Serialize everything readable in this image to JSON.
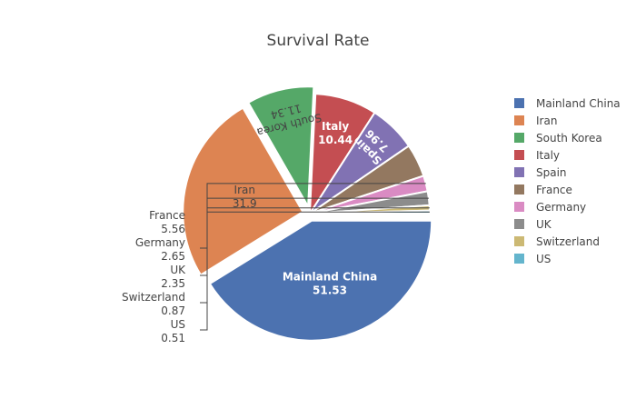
{
  "chart_data": {
    "type": "pie",
    "title": "Survival Rate",
    "labels": [
      "Mainland China",
      "Iran",
      "South Korea",
      "Italy",
      "Spain",
      "France",
      "Germany",
      "UK",
      "Switzerland",
      "US"
    ],
    "values": [
      51.53,
      31.9,
      11.34,
      10.44,
      7.96,
      5.56,
      2.65,
      2.35,
      0.87,
      0.51
    ],
    "value_labels": [
      "51.53",
      "31.9",
      "11.34",
      "10.44",
      "7.96",
      "5.56",
      "2.65",
      "2.35",
      "0.87",
      "0.51"
    ],
    "colors": [
      "#4c72b0",
      "#dd8452",
      "#55a868",
      "#c44e52",
      "#8172b3",
      "#937860",
      "#da8bc3",
      "#8c8c8c",
      "#ccb974",
      "#64b5cd"
    ],
    "pulled": [
      true,
      true,
      true,
      false,
      false,
      false,
      false,
      false,
      false,
      false
    ],
    "legend_position": "right"
  }
}
